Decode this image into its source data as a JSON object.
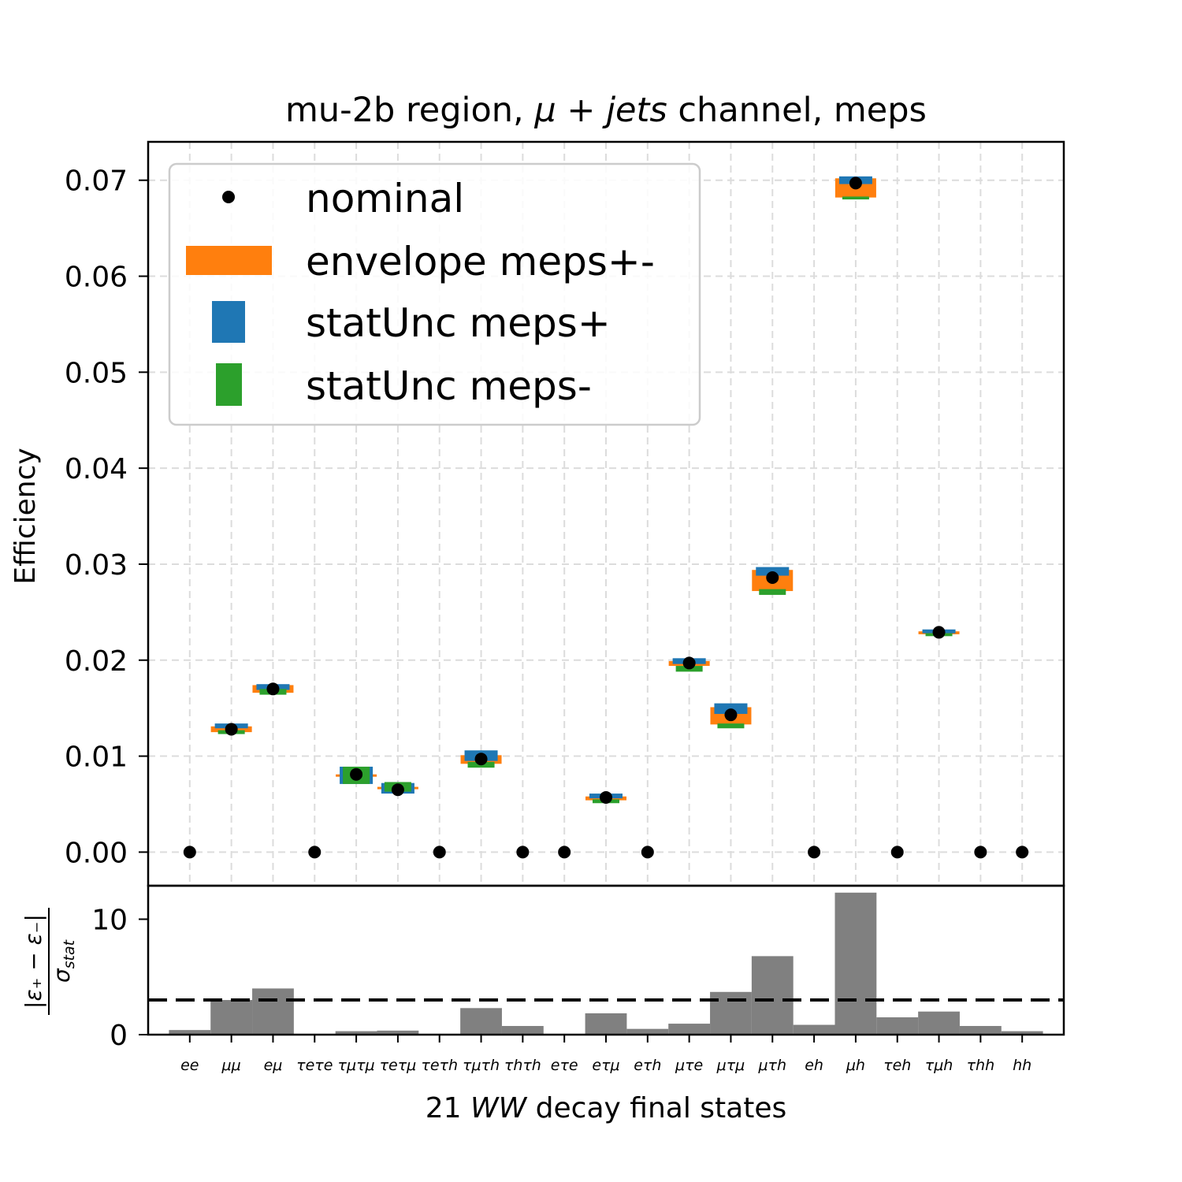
{
  "chart_data": {
    "type": "scatter",
    "title": "mu-2b region, μ + jets channel, meps",
    "xlabel": "21 WW decay final states",
    "categories": [
      "ee",
      "μμ",
      "eμ",
      "τeτe",
      "τμτμ",
      "τeτμ",
      "τeτh",
      "τμτh",
      "τhτh",
      "eτe",
      "eτμ",
      "eτh",
      "μτe",
      "μτμ",
      "μτh",
      "eh",
      "μh",
      "τeh",
      "τμh",
      "τhh",
      "hh"
    ],
    "top": {
      "ylabel": "Efficiency",
      "ylim": [
        -0.0035,
        0.074
      ],
      "yticks": [
        "0.00",
        "0.01",
        "0.02",
        "0.03",
        "0.04",
        "0.05",
        "0.06",
        "0.07"
      ],
      "grid": true,
      "legend": {
        "placement": "top-left",
        "entries": [
          "nominal",
          "envelope meps+-",
          "statUnc meps+",
          "statUnc meps-"
        ]
      },
      "series": [
        {
          "name": "nominal",
          "values": [
            0,
            0.0128,
            0.017,
            0,
            0.0081,
            0.0065,
            0,
            0.0097,
            0,
            0,
            0.0057,
            0,
            0.0197,
            0.0143,
            0.0286,
            0,
            0.0697,
            0,
            0.0229,
            0,
            0
          ]
        },
        {
          "name": "envelope meps+-",
          "low": [
            null,
            0.0125,
            0.0166,
            null,
            0.008,
            0.0066,
            null,
            0.0092,
            null,
            null,
            0.0054,
            null,
            0.0194,
            0.0133,
            0.0272,
            null,
            0.0682,
            null,
            0.0227,
            null,
            null
          ],
          "high": [
            null,
            0.0131,
            0.0174,
            null,
            0.0081,
            0.0068,
            null,
            0.0101,
            null,
            null,
            0.0058,
            null,
            0.0199,
            0.0151,
            0.0294,
            null,
            0.0702,
            null,
            0.023,
            null,
            null
          ]
        },
        {
          "name": "statUnc meps+",
          "low": [
            null,
            0.0129,
            0.0169,
            null,
            0.0071,
            0.0061,
            null,
            0.0095,
            null,
            null,
            0.0056,
            null,
            0.0196,
            0.0144,
            0.0288,
            null,
            0.0696,
            null,
            0.0228,
            null,
            null
          ],
          "high": [
            null,
            0.0134,
            0.0175,
            null,
            0.0089,
            0.0072,
            null,
            0.0106,
            null,
            null,
            0.0061,
            null,
            0.0202,
            0.0155,
            0.0297,
            null,
            0.0704,
            null,
            0.0232,
            null,
            null
          ]
        },
        {
          "name": "statUnc meps-",
          "low": [
            null,
            0.0123,
            0.0164,
            null,
            0.0071,
            0.0063,
            null,
            0.0088,
            null,
            null,
            0.0051,
            null,
            0.0188,
            0.0129,
            0.0268,
            null,
            0.068,
            null,
            0.0225,
            null,
            null
          ],
          "high": [
            null,
            0.0127,
            0.017,
            null,
            0.0089,
            0.0073,
            null,
            0.0094,
            null,
            null,
            0.0055,
            null,
            0.0194,
            0.0134,
            0.0274,
            null,
            0.0683,
            null,
            0.0228,
            null,
            null
          ]
        }
      ]
    },
    "bottom": {
      "ylabel": "|ε₊ − ε₋| / σ_stat",
      "ylim": [
        0,
        12.9
      ],
      "yticks": [
        "0",
        "10"
      ],
      "grid": false,
      "threshold": 3,
      "values": [
        0.4,
        3.0,
        4.0,
        0,
        0.3,
        0.35,
        0,
        2.3,
        0.75,
        0,
        1.85,
        0.5,
        0.95,
        3.7,
        6.8,
        0.85,
        12.3,
        1.5,
        2.0,
        0.75,
        0.3
      ]
    },
    "colors": {
      "nominal": "#000000",
      "envelope": "#ff7f0e",
      "stat_plus": "#1f77b4",
      "stat_minus": "#2ca02c",
      "ratio_bar": "#808080",
      "grid": "#dcdcdc"
    }
  }
}
